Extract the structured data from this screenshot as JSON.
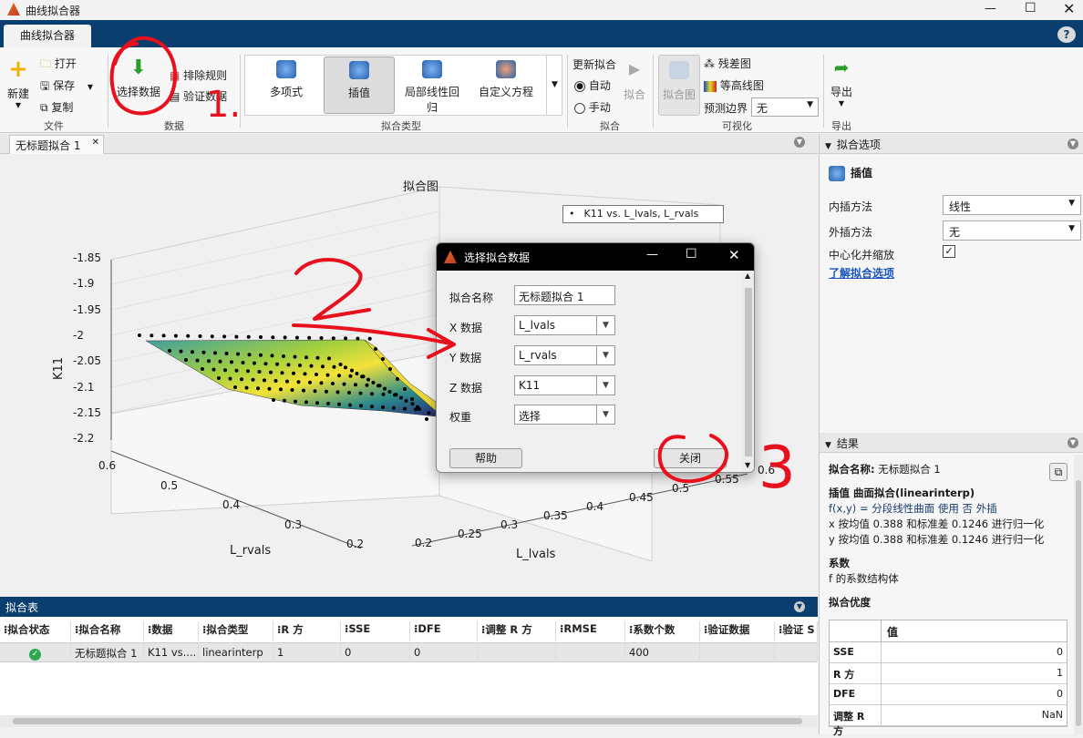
{
  "app": {
    "title": "曲线拟合器",
    "tab": "曲线拟合器"
  },
  "ribbon": {
    "file": {
      "new": "新建",
      "open": "打开",
      "save": "保存",
      "copy": "复制",
      "section": "文件"
    },
    "data": {
      "select": "选择数据",
      "exclude": "排除规则",
      "validate": "验证数据",
      "section": "数据"
    },
    "fittype": {
      "poly": "多项式",
      "interp": "插值",
      "lowess1": "局部线性回",
      "lowess2": "归",
      "custom": "自定义方程",
      "section": "拟合类型"
    },
    "fit": {
      "update": "更新拟合",
      "auto": "自动",
      "manual": "手动",
      "fit": "拟合",
      "section": "拟合"
    },
    "viz": {
      "fitplot": "拟合图",
      "resid": "残差图",
      "contour": "等高线图",
      "bounds": "预测边界",
      "bounds_val": "无",
      "section": "可视化"
    },
    "export": {
      "label": "导出",
      "section": "导出"
    }
  },
  "doc": {
    "tab": "无标题拟合 1"
  },
  "plot": {
    "title": "拟合图",
    "legend": "K11 vs. L_lvals, L_rvals",
    "zlabel": "K11",
    "xlabel": "L_lvals",
    "ylabel": "L_rvals",
    "zticks": [
      "-1.85",
      "-1.9",
      "-1.95",
      "-2",
      "-2.05",
      "-2.1",
      "-2.15",
      "-2.2"
    ],
    "yticks": [
      "0.6",
      "0.5",
      "0.4",
      "0.3",
      "0.2"
    ],
    "xticks": [
      "0.2",
      "0.25",
      "0.3",
      "0.35",
      "0.4",
      "0.45",
      "0.5",
      "0.55",
      "0.6"
    ]
  },
  "dialog": {
    "title": "选择拟合数据",
    "name_label": "拟合名称",
    "name_val": "无标题拟合 1",
    "x_label": "X 数据",
    "x_val": "L_lvals",
    "y_label": "Y 数据",
    "y_val": "L_rvals",
    "z_label": "Z 数据",
    "z_val": "K11",
    "w_label": "权重",
    "w_val": "选择",
    "help": "帮助",
    "close": "关闭"
  },
  "table": {
    "title": "拟合表",
    "headers": [
      "拟合状态",
      "拟合名称",
      "数据",
      "拟合类型",
      "R 方",
      "SSE",
      "DFE",
      "调整 R 方",
      "RMSE",
      "系数个数",
      "验证数据",
      "验证 S"
    ],
    "row": {
      "name": "无标题拟合 1",
      "data": "K11 vs....",
      "type": "linearinterp",
      "r2": "1",
      "sse": "0",
      "dfe": "0",
      "adjr2": "",
      "rmse": "",
      "ncoef": "400",
      "val": "",
      "val2": ""
    }
  },
  "options": {
    "title": "拟合选项",
    "method": "插值",
    "interp_label": "内插方法",
    "interp_val": "线性",
    "extrap_label": "外插方法",
    "extrap_val": "无",
    "center_label": "中心化并缩放",
    "learn": "了解拟合选项"
  },
  "results": {
    "title": "结果",
    "name_label": "拟合名称:",
    "name_val": "无标题拟合 1",
    "heading": "插值 曲面拟合(linearinterp)",
    "line1": "f(x,y) = 分段线性曲面 使用 否 外插",
    "line2": "x 按均值 0.388 和标准差 0.1246 进行归一化",
    "line3": "y 按均值 0.388 和标准差 0.1246 进行归一化",
    "coef_h": "系数",
    "coef_t": "f 的系数结构体",
    "gof_h": "拟合优度",
    "gof_col": "值",
    "gof": [
      {
        "k": "SSE",
        "v": "0"
      },
      {
        "k": "R 方",
        "v": "1"
      },
      {
        "k": "DFE",
        "v": "0"
      },
      {
        "k": "调整 R 方",
        "v": "NaN"
      }
    ]
  },
  "annotations": {
    "a1": "1.",
    "a2": "2",
    "a3": "3"
  }
}
